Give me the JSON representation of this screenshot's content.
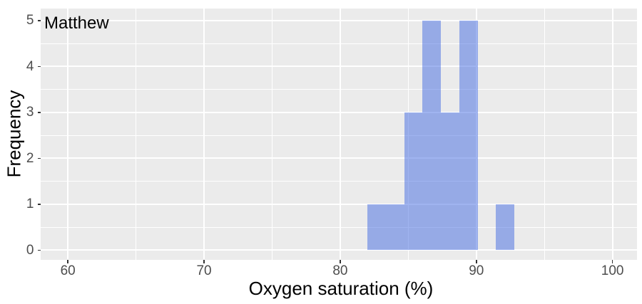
{
  "chart": {
    "annotation_label": "Matthew",
    "x_title": "Oxygen saturation (%)",
    "y_title": "Frequency"
  },
  "chart_data": {
    "type": "bar",
    "subtype": "histogram",
    "title": "Matthew",
    "xlabel": "Oxygen saturation (%)",
    "ylabel": "Frequency",
    "bin_width": 1.35,
    "bins": [
      {
        "x0": 82.0,
        "x1": 83.35,
        "count": 1
      },
      {
        "x0": 83.35,
        "x1": 84.7,
        "count": 1
      },
      {
        "x0": 84.7,
        "x1": 86.05,
        "count": 3
      },
      {
        "x0": 86.05,
        "x1": 87.4,
        "count": 5
      },
      {
        "x0": 87.4,
        "x1": 88.75,
        "count": 3
      },
      {
        "x0": 88.75,
        "x1": 90.1,
        "count": 5
      },
      {
        "x0": 90.1,
        "x1": 91.45,
        "count": 0
      },
      {
        "x0": 91.45,
        "x1": 92.8,
        "count": 1
      }
    ],
    "x_ticks": [
      60,
      70,
      80,
      90,
      100
    ],
    "x_minor_ticks": [
      65,
      75,
      85,
      95
    ],
    "y_ticks": [
      0,
      1,
      2,
      3,
      4,
      5
    ],
    "y_minor_ticks": [
      0.5,
      1.5,
      2.5,
      3.5,
      4.5
    ],
    "xlim": [
      60,
      100
    ],
    "ylim": [
      0,
      5
    ],
    "xlim_expanded": [
      58.0,
      101.8
    ],
    "ylim_expanded": [
      -0.21,
      5.26
    ],
    "grid": true,
    "legend": false,
    "style": {
      "panel_background": "#EBEBEB",
      "grid_color": "#FFFFFF",
      "bar_fill": "rgba(65,105,225,0.5)",
      "tick_label_color": "#4D4D4D",
      "tick_mark_color": "#333333",
      "text_color": "#000000"
    }
  }
}
